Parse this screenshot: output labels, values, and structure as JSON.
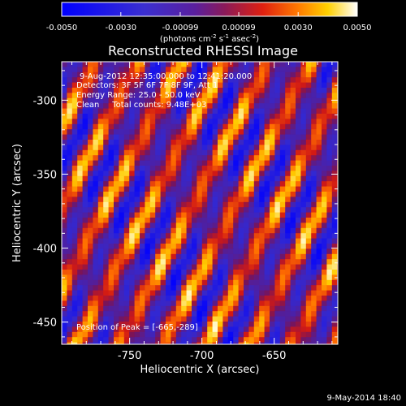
{
  "colorbar": {
    "tick_labels": [
      "-0.0050",
      "-0.0030",
      "-0.00099",
      "0.00099",
      "0.0030",
      "0.0050"
    ],
    "tick_values": [
      -0.005,
      -0.003,
      -0.00099,
      0.00099,
      0.003,
      0.005
    ],
    "range": [
      -0.005,
      0.005
    ],
    "units_prefix": "(photons cm",
    "units_exp1": "-2",
    "units_mid": " s",
    "units_exp2": "-1",
    "units_mid2": " asec",
    "units_exp3": "-2",
    "units_suffix": ")"
  },
  "annotations": {
    "line1": "9-Aug-2012 12:35:00.000 to 12:41:20.000",
    "line2": "Detectors: 3F 5F 6F 7F 8F 9F, Att 1",
    "line3": "Energy Range: 25.0 - 50.0 keV",
    "line4": "Clean     Total counts: 9.48E+03",
    "peak": "Position of Peak = [-665,-289]"
  },
  "footer": {
    "date": "9-May-2014 18:40"
  },
  "chart_data": {
    "type": "heatmap",
    "title": "Reconstructed RHESSI Image",
    "xlabel": "Heliocentric X (arcsec)",
    "ylabel": "Heliocentric Y (arcsec)",
    "xlim": [
      -797,
      -606
    ],
    "ylim": [
      -465,
      -274
    ],
    "x_ticks": [
      -750,
      -700,
      -650
    ],
    "x_tick_labels": [
      "-750",
      "-700",
      "-650"
    ],
    "y_ticks": [
      -450,
      -400,
      -350,
      -300
    ],
    "y_tick_labels": [
      "-450",
      "-400",
      "-350",
      "-300"
    ],
    "colormap": "blue-purple-red-yellow-white",
    "peak_position": [
      -665,
      -289
    ],
    "value_range": [
      -0.005,
      0.005
    ]
  }
}
